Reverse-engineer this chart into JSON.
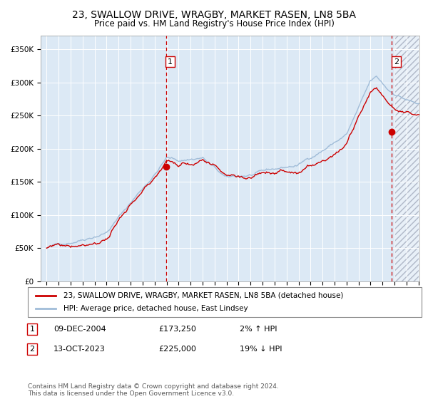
{
  "title": "23, SWALLOW DRIVE, WRAGBY, MARKET RASEN, LN8 5BA",
  "subtitle": "Price paid vs. HM Land Registry's House Price Index (HPI)",
  "ylim": [
    0,
    370000
  ],
  "yticks": [
    0,
    50000,
    100000,
    150000,
    200000,
    250000,
    300000,
    350000
  ],
  "ytick_labels": [
    "£0",
    "£50K",
    "£100K",
    "£150K",
    "£200K",
    "£250K",
    "£300K",
    "£350K"
  ],
  "x_start_year": 1995,
  "x_end_year": 2026,
  "background_color": "#dce9f5",
  "hatch_color": "#b0b8c8",
  "grid_color": "#ffffff",
  "line_color_hpi": "#a0bcd8",
  "line_color_price": "#cc0000",
  "marker_color": "#cc0000",
  "sale1_year": 2004.94,
  "sale1_price": 173250,
  "sale2_year": 2023.79,
  "sale2_price": 225000,
  "legend_line1": "23, SWALLOW DRIVE, WRAGBY, MARKET RASEN, LN8 5BA (detached house)",
  "legend_line2": "HPI: Average price, detached house, East Lindsey",
  "ann1_date": "09-DEC-2004",
  "ann1_price": "£173,250",
  "ann1_pct": "2% ↑ HPI",
  "ann2_date": "13-OCT-2023",
  "ann2_price": "£225,000",
  "ann2_pct": "19% ↓ HPI",
  "footer": "Contains HM Land Registry data © Crown copyright and database right 2024.\nThis data is licensed under the Open Government Licence v3.0.",
  "title_fontsize": 10,
  "subtitle_fontsize": 8.5,
  "tick_fontsize": 7.5,
  "legend_fontsize": 7.5,
  "annotation_fontsize": 8,
  "footer_fontsize": 6.5
}
